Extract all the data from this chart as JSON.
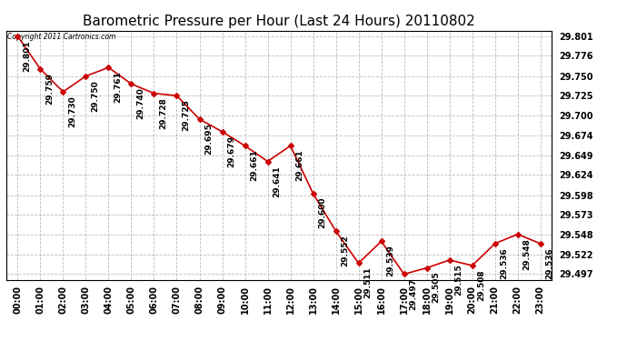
{
  "title": "Barometric Pressure per Hour (Last 24 Hours) 20110802",
  "copyright": "Copyright 2011 Cartronics.com",
  "hours": [
    "00:00",
    "01:00",
    "02:00",
    "03:00",
    "04:00",
    "05:00",
    "06:00",
    "07:00",
    "08:00",
    "09:00",
    "10:00",
    "11:00",
    "12:00",
    "13:00",
    "14:00",
    "15:00",
    "16:00",
    "17:00",
    "18:00",
    "19:00",
    "20:00",
    "21:00",
    "22:00",
    "23:00"
  ],
  "values": [
    29.801,
    29.759,
    29.73,
    29.75,
    29.761,
    29.74,
    29.728,
    29.725,
    29.695,
    29.679,
    29.661,
    29.641,
    29.661,
    29.6,
    29.552,
    29.511,
    29.539,
    29.497,
    29.505,
    29.515,
    29.508,
    29.536,
    29.548,
    29.536
  ],
  "line_color": "#cc0000",
  "marker_color": "#cc0000",
  "bg_color": "#ffffff",
  "grid_color": "#bbbbbb",
  "ylim_min": 29.49,
  "ylim_max": 29.808,
  "ytick_values": [
    29.801,
    29.776,
    29.75,
    29.725,
    29.7,
    29.674,
    29.649,
    29.624,
    29.598,
    29.573,
    29.548,
    29.522,
    29.497
  ],
  "title_fontsize": 11,
  "tick_fontsize": 7,
  "annotation_fontsize": 6.5
}
